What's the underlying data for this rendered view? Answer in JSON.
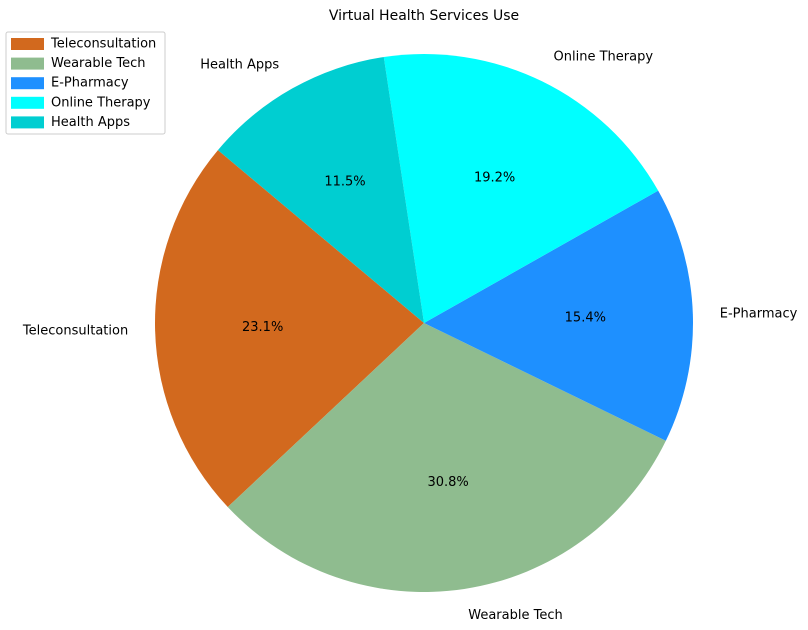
{
  "chart_data": {
    "type": "pie",
    "title": "Virtual Health Services Use",
    "categories": [
      "Teleconsultation",
      "Wearable Tech",
      "E-Pharmacy",
      "Online Therapy",
      "Health Apps"
    ],
    "values": [
      23.1,
      30.8,
      15.4,
      19.2,
      11.5
    ],
    "percent_labels": [
      "23.1%",
      "30.8%",
      "15.4%",
      "19.2%",
      "11.5%"
    ],
    "colors": [
      "#D2691E",
      "#8FBC8F",
      "#1E90FF",
      "#00FFFF",
      "#00CED1"
    ],
    "legend": {
      "position": "top-left",
      "entries": [
        "Teleconsultation",
        "Wearable Tech",
        "E-Pharmacy",
        "Online Therapy",
        "Health Apps"
      ]
    },
    "start_angle_deg": 140,
    "direction": "counterclockwise"
  }
}
